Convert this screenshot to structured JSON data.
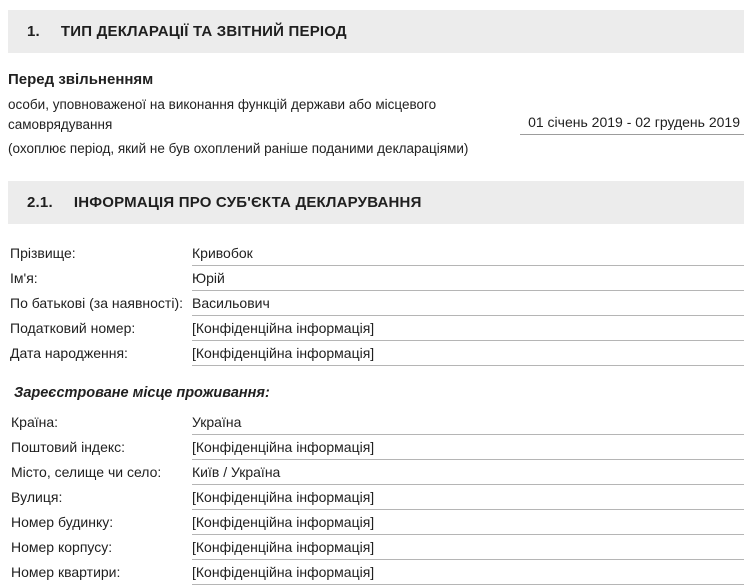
{
  "colors": {
    "header_bg": "#ececec",
    "header_text": "#1f1f1f",
    "body_text": "#212121",
    "field_underline": "#b5b5b5",
    "period_underline": "#9c9c9c",
    "page_bg": "#ffffff"
  },
  "sections": [
    {
      "number": "1.",
      "title": "ТИП ДЕКЛАРАЦІЇ ТА ЗВІТНИЙ ПЕРІОД"
    },
    {
      "number": "2.1.",
      "title": "ІНФОРМАЦІЯ ПРО СУБ'ЄКТА ДЕКЛАРУВАННЯ"
    }
  ],
  "declaration_type": {
    "title": "Перед звільненням",
    "subtitle": "особи, уповноваженої на виконання функцій держави або місцевого самоврядування",
    "period": "01 січень 2019 - 02 грудень 2019",
    "note": "(охоплює період, який не був охоплений раніше поданими деклараціями)"
  },
  "subject_fields": [
    {
      "label": "Прізвище:",
      "value": "Кривобок"
    },
    {
      "label": "Ім'я:",
      "value": "Юрій"
    },
    {
      "label": "По батькові (за наявності):",
      "value": "Васильович"
    },
    {
      "label": "Податковий номер:",
      "value": "[Конфіденційна інформація]"
    },
    {
      "label": "Дата народження:",
      "value": "[Конфіденційна інформація]"
    }
  ],
  "residence": {
    "heading": "Зареєстроване місце проживання:",
    "fields": [
      {
        "label": "Країна:",
        "value": "Україна"
      },
      {
        "label": "Поштовий індекс:",
        "value": "[Конфіденційна інформація]"
      },
      {
        "label": "Місто, селище чи село:",
        "value": "Київ / Україна"
      },
      {
        "label": "Вулиця:",
        "value": "[Конфіденційна інформація]"
      },
      {
        "label": "Номер будинку:",
        "value": "[Конфіденційна інформація]"
      },
      {
        "label": "Номер корпусу:",
        "value": "[Конфіденційна інформація]"
      },
      {
        "label": "Номер квартири:",
        "value": "[Конфіденційна інформація]"
      }
    ]
  }
}
